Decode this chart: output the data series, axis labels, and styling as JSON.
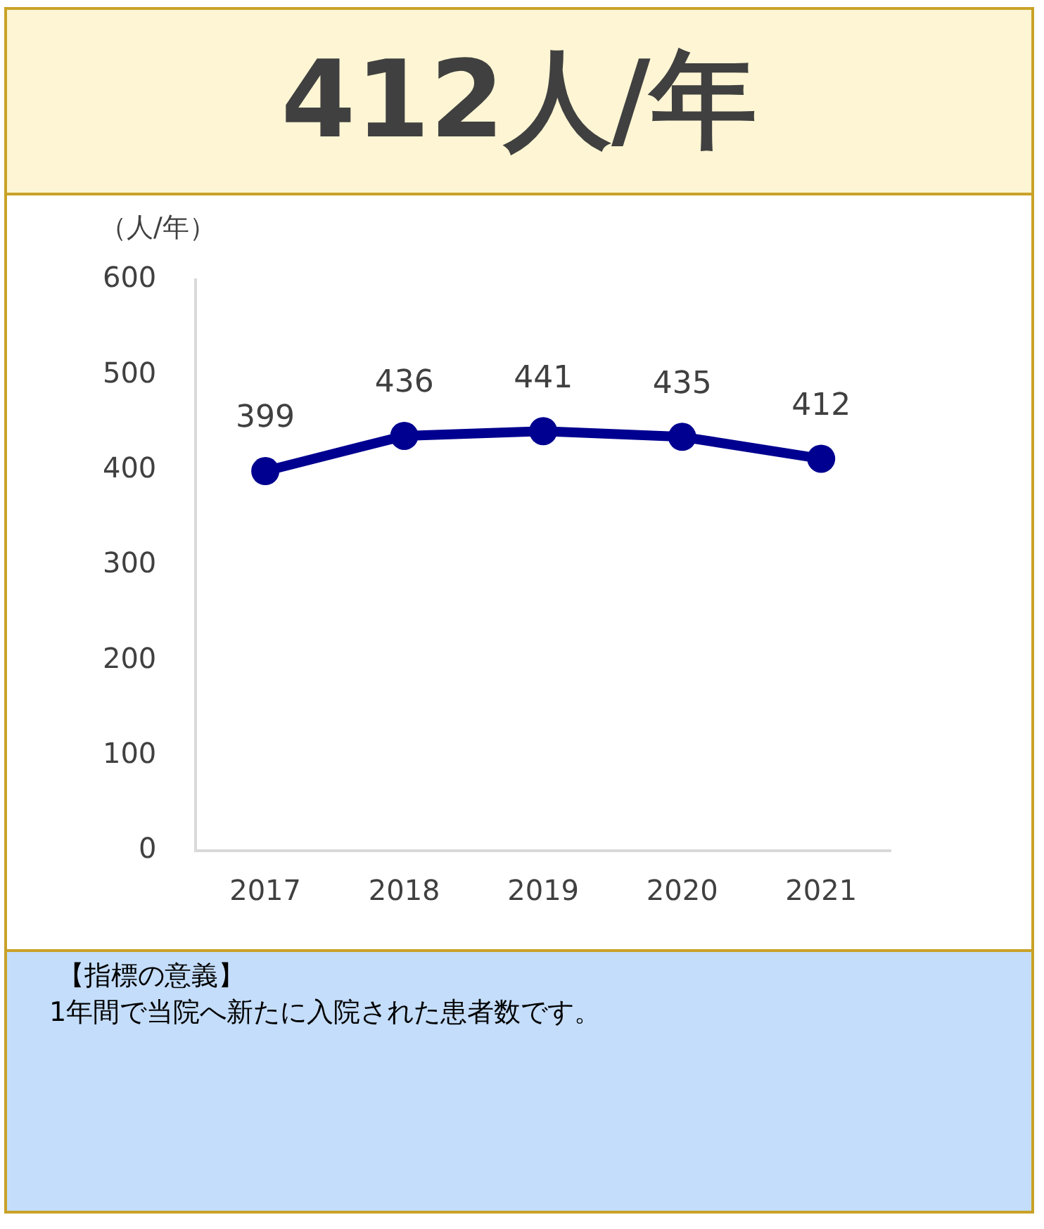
{
  "chart_data": {
    "type": "line",
    "title": "412人/年",
    "ylabel": "（人/年）",
    "categories": [
      "2017",
      "2018",
      "2019",
      "2020",
      "2021"
    ],
    "series": [
      {
        "color": "#000090",
        "values": [
          399,
          436,
          441,
          435,
          412
        ]
      }
    ],
    "ylim": [
      0,
      600
    ],
    "yticks": [
      0,
      100,
      200,
      300,
      400,
      500,
      600
    ],
    "grid": false,
    "legend": false,
    "marker": "circle",
    "line_style": "solid",
    "data_labels": true,
    "annotations": [
      "【指標の意義】",
      "1年間で当院へ新たに入院された患者数です。"
    ]
  }
}
